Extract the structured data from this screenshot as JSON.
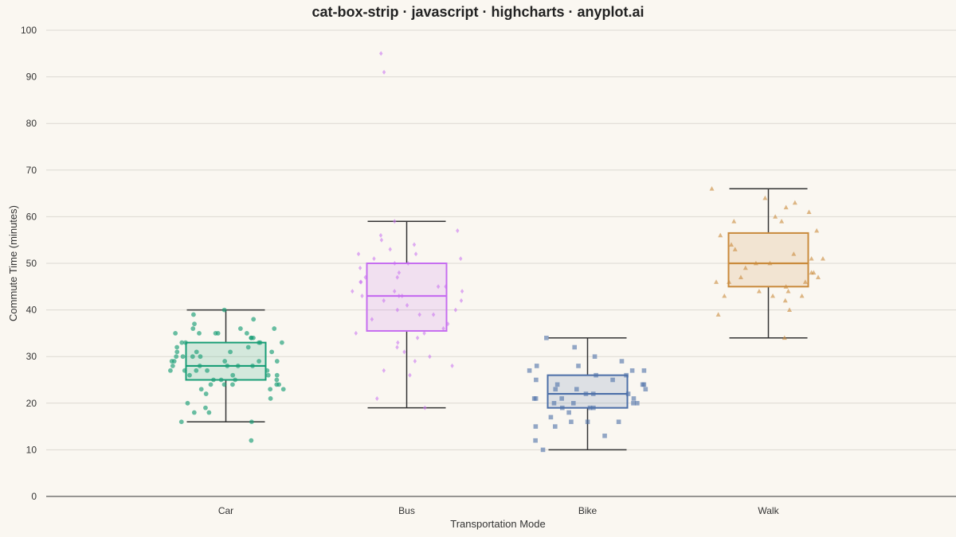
{
  "chart_data": {
    "type": "box-strip",
    "title": "cat-box-strip · javascript · highcharts · anyplot.ai",
    "xlabel": "Transportation Mode",
    "ylabel": "Commute Time (minutes)",
    "ylim": [
      0,
      100
    ],
    "yticks": [
      0,
      10,
      20,
      30,
      40,
      50,
      60,
      70,
      80,
      90,
      100
    ],
    "grid": true,
    "categories": [
      "Car",
      "Bus",
      "Bike",
      "Walk"
    ],
    "boxes": [
      {
        "category": "Car",
        "color": "#1a9e77",
        "marker": "circle",
        "min": 16,
        "q1": 25,
        "median": 28,
        "q3": 33,
        "max": 40,
        "points": [
          35,
          39,
          37,
          32,
          29,
          27,
          27,
          28,
          20,
          19,
          18,
          16,
          34,
          33,
          30,
          31,
          35,
          35,
          36,
          34,
          32,
          33,
          29,
          28,
          27,
          26,
          26,
          27,
          26,
          25,
          24,
          24,
          23,
          23,
          28,
          28,
          29,
          30,
          30,
          31,
          31,
          33,
          34,
          36,
          36,
          35,
          35,
          33,
          33,
          31,
          30,
          29,
          29,
          25,
          25,
          25,
          24,
          24,
          24,
          23,
          22,
          21,
          18,
          16,
          12,
          40,
          38,
          27,
          26,
          28
        ]
      },
      {
        "category": "Bus",
        "color": "#c66ef0",
        "marker": "diamond",
        "min": 19,
        "q1": 35.5,
        "median": 43,
        "q3": 50,
        "max": 59,
        "points": [
          95,
          91,
          59,
          57,
          56,
          55,
          54,
          53,
          52,
          52,
          51,
          51,
          50,
          50,
          49,
          48,
          47,
          47,
          46,
          46,
          45,
          45,
          44,
          44,
          44,
          43,
          43,
          43,
          42,
          42,
          41,
          40,
          40,
          39,
          39,
          38,
          37,
          36,
          35,
          35,
          34,
          33,
          32,
          31,
          30,
          29,
          28,
          27,
          26,
          21,
          19
        ]
      },
      {
        "category": "Bike",
        "color": "#4c6fa8",
        "marker": "square",
        "min": 10,
        "q1": 19,
        "median": 22,
        "q3": 26,
        "max": 34,
        "points": [
          34,
          32,
          30,
          29,
          28,
          28,
          27,
          27,
          27,
          26,
          26,
          25,
          25,
          24,
          24,
          24,
          23,
          23,
          23,
          22,
          22,
          22,
          21,
          21,
          21,
          21,
          20,
          20,
          20,
          20,
          19,
          19,
          19,
          18,
          17,
          16,
          16,
          16,
          15,
          15,
          13,
          12,
          10
        ]
      },
      {
        "category": "Walk",
        "color": "#c98a3c",
        "marker": "triangle",
        "min": 34,
        "q1": 45,
        "median": 50,
        "q3": 56.5,
        "max": 66,
        "points": [
          66,
          64,
          63,
          62,
          61,
          60,
          59,
          59,
          57,
          56,
          54,
          53,
          52,
          51,
          51,
          50,
          50,
          49,
          48,
          48,
          47,
          47,
          46,
          46,
          46,
          45,
          44,
          44,
          43,
          43,
          43,
          42,
          40,
          39,
          34
        ]
      }
    ]
  }
}
